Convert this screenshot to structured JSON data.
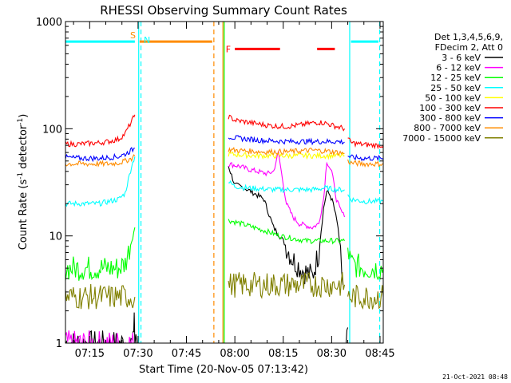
{
  "chart_data": {
    "type": "line",
    "title": "RHESSI Observing Summary Count Rates",
    "xlabel": "Start Time (20-Nov-05 07:13:42)",
    "ylabel": "Count Rate (s",
    "ylabel_sup": "-1",
    "ylabel_tail": " detector",
    "ylabel_tail_sup": "-1",
    "ylabel_close": ")",
    "yscale": "log",
    "ylim": [
      1,
      1000
    ],
    "xlim_minutes": [
      7.5,
      106
    ],
    "xticks": [
      {
        "label": "07:15",
        "t": 15
      },
      {
        "label": "07:30",
        "t": 30
      },
      {
        "label": "07:45",
        "t": 45
      },
      {
        "label": "08:00",
        "t": 60
      },
      {
        "label": "08:15",
        "t": 75
      },
      {
        "label": "08:30",
        "t": 90
      },
      {
        "label": "08:45",
        "t": 105
      }
    ],
    "yticks": [
      {
        "label": "1",
        "v": 1
      },
      {
        "label": "10",
        "v": 10
      },
      {
        "label": "100",
        "v": 100
      },
      {
        "label": "1000",
        "v": 1000
      }
    ],
    "legend_header": [
      "Det 1,3,4,5,6,9,",
      "FDecim 2, Att 0"
    ],
    "legend_position": "top-right",
    "series": [
      {
        "name": "3 - 6 keV",
        "color": "#000000",
        "segments": [
          {
            "t": [
              7.5,
              26,
              28.5,
              28.8,
              29,
              30
            ],
            "v": [
              1.0,
              1.0,
              1.0,
              2.0,
              1.0,
              1.0
            ]
          },
          {
            "t": [
              58,
              60,
              63,
              66,
              69,
              72,
              75,
              78,
              81,
              84,
              86,
              87.5,
              88.5,
              89.5,
              90.5,
              92,
              93.5
            ],
            "v": [
              45,
              30,
              28,
              25,
              22,
              12,
              9,
              6,
              4.8,
              4.2,
              7,
              18,
              26,
              24,
              20,
              12,
              3.5
            ]
          },
          {
            "t": [
              94.5,
              95
            ],
            "v": [
              1.0,
              1.4
            ]
          }
        ]
      },
      {
        "name": "6 - 12 keV",
        "color": "#ff00ff",
        "segments": [
          {
            "t": [
              7.5,
              26,
              28,
              29.5,
              30
            ],
            "v": [
              1,
              1,
              1,
              1,
              1
            ]
          },
          {
            "t": [
              58,
              61,
              64,
              67,
              70,
              72,
              73.5,
              74.5,
              76,
              78,
              80,
              84,
              86,
              87.5,
              88.5,
              90,
              91.5,
              92.5,
              94
            ],
            "v": [
              47,
              45,
              42,
              40,
              38,
              40,
              60,
              38,
              20,
              15,
              13,
              12,
              13,
              22,
              50,
              40,
              22,
              18,
              15
            ]
          }
        ]
      },
      {
        "name": "12 - 25 keV",
        "color": "#00ff00",
        "segments": [
          {
            "t": [
              7.5,
              12,
              15,
              18,
              21,
              24,
              26,
              28,
              29
            ],
            "v": [
              5,
              5,
              5,
              5,
              5,
              5,
              5.5,
              9,
              12
            ]
          },
          {
            "t": [
              58,
              62,
              66,
              70,
              74,
              78,
              82,
              86,
              90,
              94
            ],
            "v": [
              14,
              13,
              12,
              11,
              10,
              9.5,
              9,
              9,
              9,
              9
            ]
          },
          {
            "t": [
              95,
              96,
              100,
              104,
              106
            ],
            "v": [
              7.5,
              5.5,
              5,
              5,
              5
            ]
          }
        ]
      },
      {
        "name": "25 - 50 keV",
        "color": "#00ffff",
        "segments": [
          {
            "t": [
              7.5,
              12,
              15,
              18,
              21,
              24,
              26,
              28,
              29
            ],
            "v": [
              20,
              20,
              20,
              20,
              21,
              22,
              25,
              45,
              55
            ]
          },
          {
            "t": [
              58,
              60,
              64,
              68,
              72,
              76,
              80,
              84,
              88,
              92,
              94
            ],
            "v": [
              32,
              29,
              28,
              27.5,
              27,
              27,
              27,
              27,
              28,
              27,
              27
            ]
          },
          {
            "t": [
              95,
              96,
              100,
              104,
              106
            ],
            "v": [
              24,
              22,
              21,
              21,
              21
            ]
          }
        ]
      },
      {
        "name": "50 - 100 keV",
        "color": "#ffff00",
        "segments": [
          {
            "t": [
              58,
              62,
              66,
              70,
              74,
              78,
              82,
              86,
              90,
              94
            ],
            "v": [
              58,
              57,
              56,
              56,
              56,
              56,
              56,
              56,
              56,
              56
            ]
          }
        ]
      },
      {
        "name": "100 - 300 keV",
        "color": "#ff0000",
        "segments": [
          {
            "t": [
              7.5,
              12,
              15,
              18,
              21,
              24,
              26,
              27.5,
              28.5,
              29
            ],
            "v": [
              72,
              72,
              73,
              74,
              76,
              80,
              90,
              110,
              125,
              135
            ]
          },
          {
            "t": [
              58,
              60,
              64,
              68,
              72,
              76,
              80,
              84,
              86,
              88,
              90,
              92,
              94
            ],
            "v": [
              130,
              120,
              115,
              110,
              106,
              105,
              108,
              113,
              115,
              113,
              108,
              104,
              100
            ]
          },
          {
            "t": [
              95,
              96,
              100,
              104,
              106
            ],
            "v": [
              82,
              74,
              71,
              70,
              70
            ]
          }
        ]
      },
      {
        "name": "300 - 800 keV",
        "color": "#0000ff",
        "segments": [
          {
            "t": [
              7.5,
              12,
              15,
              18,
              21,
              24,
              26,
              28,
              29
            ],
            "v": [
              54,
              53,
              53,
              53,
              54,
              55,
              58,
              63,
              66
            ]
          },
          {
            "t": [
              58,
              60,
              64,
              68,
              72,
              76,
              80,
              84,
              88,
              92,
              94
            ],
            "v": [
              85,
              82,
              80,
              78,
              77,
              76,
              76,
              76,
              76,
              76,
              75
            ]
          },
          {
            "t": [
              95,
              96,
              100,
              104,
              106
            ],
            "v": [
              56,
              54,
              53,
              53,
              53
            ]
          }
        ]
      },
      {
        "name": "800 - 7000 keV",
        "color": "#ff8c00",
        "segments": [
          {
            "t": [
              7.5,
              12,
              15,
              18,
              21,
              24,
              26,
              28,
              29
            ],
            "v": [
              47,
              47,
              47,
              47,
              47,
              48,
              50,
              53,
              56
            ]
          },
          {
            "t": [
              58,
              60,
              64,
              68,
              72,
              76,
              80,
              84,
              88,
              92,
              94
            ],
            "v": [
              64,
              63,
              62,
              61,
              61,
              61,
              62,
              63,
              62,
              60,
              59
            ]
          },
          {
            "t": [
              95,
              96,
              100,
              104,
              106
            ],
            "v": [
              50,
              48,
              47,
              47,
              47
            ]
          }
        ]
      },
      {
        "name": "7000 - 15000 keV",
        "color": "#808000",
        "segments": [
          {
            "t": [
              7.5,
              12,
              15,
              18,
              21,
              24,
              26,
              28,
              29
            ],
            "v": [
              2.7,
              2.7,
              2.7,
              2.7,
              2.7,
              2.7,
              2.7,
              2.7,
              2.7
            ]
          },
          {
            "t": [
              58,
              62,
              66,
              70,
              74,
              78,
              82,
              86,
              90,
              94
            ],
            "v": [
              3.5,
              3.5,
              3.5,
              3.5,
              3.5,
              3.5,
              3.5,
              3.5,
              3.5,
              3.5
            ]
          },
          {
            "t": [
              95,
              96,
              100,
              104,
              106
            ],
            "v": [
              2.7,
              2.7,
              2.7,
              2.7,
              2.7
            ]
          }
        ]
      }
    ],
    "annotations": [
      {
        "label": "S",
        "kind": "bar",
        "color": "#ff8c00",
        "t_start": 30.5,
        "t_end": 53,
        "level": 650
      },
      {
        "label": "N",
        "kind": "marker",
        "color": "#00ffff",
        "t": 31.5,
        "level": 650
      },
      {
        "label": "F",
        "kind": "bar",
        "color": "#ff0000",
        "t_start": 60,
        "t_end": 74,
        "level": 555
      },
      {
        "label": "",
        "kind": "bar",
        "color": "#ff0000",
        "t_start": 85.5,
        "t_end": 91,
        "level": 555
      },
      {
        "label": "",
        "kind": "bar",
        "color": "#00ffff",
        "t_start": 7.5,
        "t_end": 29,
        "level": 650
      },
      {
        "label": "",
        "kind": "bar",
        "color": "#00ffff",
        "t_start": 96,
        "t_end": 104.5,
        "level": 650
      }
    ],
    "vlines": [
      {
        "t": 30.2,
        "color": "#00ffff",
        "style": "solid"
      },
      {
        "t": 30.9,
        "color": "#00ffff",
        "style": "dashed"
      },
      {
        "t": 53.5,
        "color": "#ff8c00",
        "style": "dashed"
      },
      {
        "t": 56.3,
        "color": "#ff8c00",
        "style": "solid"
      },
      {
        "t": 56.7,
        "color": "#00ff00",
        "style": "solid"
      },
      {
        "t": 95.6,
        "color": "#00ffff",
        "style": "solid"
      },
      {
        "t": 104.9,
        "color": "#00ffff",
        "style": "dashed"
      }
    ]
  },
  "footer_date": "21-Oct-2021 08:48"
}
